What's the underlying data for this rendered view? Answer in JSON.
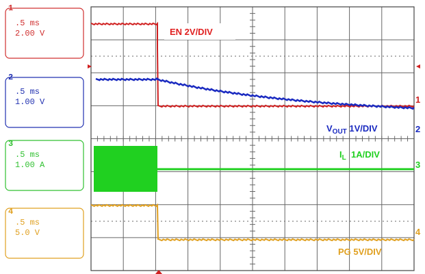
{
  "panels": [
    {
      "channel": "1",
      "time": ".5 ms",
      "scale": "2.00 V"
    },
    {
      "channel": "2",
      "time": ".5 ms",
      "scale": "1.00 V"
    },
    {
      "channel": "3",
      "time": ".5 ms",
      "scale": "1.00 A"
    },
    {
      "channel": "4",
      "time": ".5 ms",
      "scale": "5.0 V"
    }
  ],
  "trace_labels": {
    "en": "EN 2V/DIV",
    "vout": {
      "main": "V",
      "sub": "OUT",
      "rest": " 1V/DIV"
    },
    "il": {
      "main": "I",
      "sub": "L",
      "rest": "  1A/DIV"
    },
    "pg": "PG 5V/DIV"
  },
  "markers": [
    "1",
    "2",
    "3",
    "4"
  ]
}
